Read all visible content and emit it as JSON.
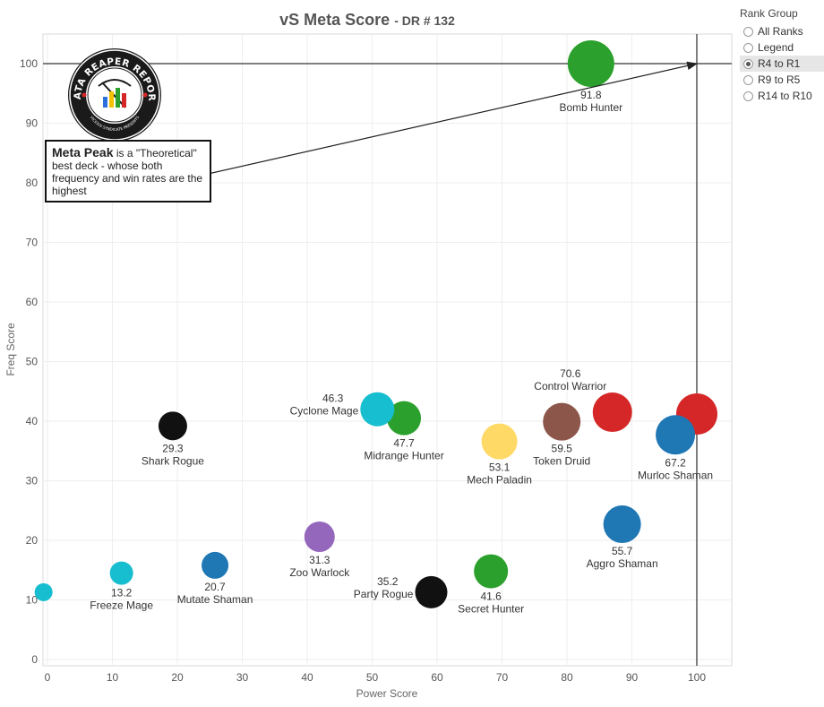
{
  "title": "vS Meta Score",
  "subtitle": "- DR # 132",
  "rank_group": {
    "title": "Rank Group",
    "options": [
      "All Ranks",
      "Legend",
      "R4 to R1",
      "R9 to R5",
      "R14 to R10"
    ],
    "selected": "R4 to R1"
  },
  "logo": {
    "text_top": "DATA REAPER REPORT",
    "text_bottom": "VICIOUS SYNDICATE PRESENTS"
  },
  "annotation": {
    "bold": "Meta Peak",
    "rest": " is a \"Theoretical\" best deck - whose both frequency and win rates are the highest"
  },
  "chart_data": {
    "type": "scatter",
    "xlabel": "Power Score",
    "ylabel": "Freq Score",
    "xlim": [
      0,
      105
    ],
    "ylim": [
      -1,
      105
    ],
    "xticks": [
      0,
      10,
      20,
      30,
      40,
      50,
      60,
      70,
      80,
      90,
      100
    ],
    "yticks": [
      0,
      10,
      20,
      30,
      40,
      50,
      60,
      70,
      80,
      90,
      100
    ],
    "grid": true,
    "reference_lines": {
      "x": 100,
      "y": 100
    },
    "colors": {
      "green": "#2ca02c",
      "blue": "#1f77b4",
      "red": "#d62728",
      "black": "#111111",
      "teal": "#17becf",
      "purple": "#9467bd",
      "brown": "#8c564b",
      "yellow": "#ffd966"
    },
    "points": [
      {
        "name": "Bomb Hunter",
        "value": "91.8",
        "x": 83.7,
        "y": 100,
        "size": 26,
        "color": "#2ca02c",
        "label_pos": "below"
      },
      {
        "name": "Control Warrior",
        "value": "70.6",
        "x": 87,
        "y": 41.5,
        "size": 22,
        "color": "#d62728",
        "label_pos": "above"
      },
      {
        "name": "",
        "value": "",
        "x": 100,
        "y": 41.2,
        "size": 23,
        "color": "#d62728",
        "label_pos": "none"
      },
      {
        "name": "Murloc Shaman",
        "value": "67.2",
        "x": 96.7,
        "y": 37.7,
        "size": 22,
        "color": "#1f77b4",
        "label_pos": "below"
      },
      {
        "name": "Token Druid",
        "value": "59.5",
        "x": 79.2,
        "y": 39.9,
        "size": 21,
        "color": "#8c564b",
        "label_pos": "below"
      },
      {
        "name": "Mech Paladin",
        "value": "53.1",
        "x": 69.6,
        "y": 36.6,
        "size": 20,
        "color": "#ffd966",
        "label_pos": "below"
      },
      {
        "name": "Midrange Hunter",
        "value": "47.7",
        "x": 54.9,
        "y": 40.5,
        "size": 19,
        "color": "#2ca02c",
        "label_pos": "below"
      },
      {
        "name": "Cyclone Mage",
        "value": "46.3",
        "x": 50.8,
        "y": 42,
        "size": 19,
        "color": "#17becf",
        "label_pos": "left"
      },
      {
        "name": "Shark Rogue",
        "value": "29.3",
        "x": 19.3,
        "y": 39.2,
        "size": 16,
        "color": "#111111",
        "label_pos": "below"
      },
      {
        "name": "Aggro Shaman",
        "value": "55.7",
        "x": 88.5,
        "y": 22.7,
        "size": 21,
        "color": "#1f77b4",
        "label_pos": "below"
      },
      {
        "name": "Secret Hunter",
        "value": "41.6",
        "x": 68.3,
        "y": 14.8,
        "size": 19,
        "color": "#2ca02c",
        "label_pos": "below"
      },
      {
        "name": "Party Rogue",
        "value": "35.2",
        "x": 59.1,
        "y": 11.3,
        "size": 18,
        "color": "#111111",
        "label_pos": "left"
      },
      {
        "name": "Zoo Warlock",
        "value": "31.3",
        "x": 41.9,
        "y": 20.6,
        "size": 17,
        "color": "#9467bd",
        "label_pos": "below"
      },
      {
        "name": "Mutate Shaman",
        "value": "20.7",
        "x": 25.8,
        "y": 15.8,
        "size": 15,
        "color": "#1f77b4",
        "label_pos": "below"
      },
      {
        "name": "Freeze Mage",
        "value": "13.2",
        "x": 11.4,
        "y": 14.5,
        "size": 13,
        "color": "#17becf",
        "label_pos": "below"
      },
      {
        "name": "",
        "value": "",
        "x": -0.6,
        "y": 11.3,
        "size": 10,
        "color": "#17becf",
        "label_pos": "none"
      }
    ]
  }
}
